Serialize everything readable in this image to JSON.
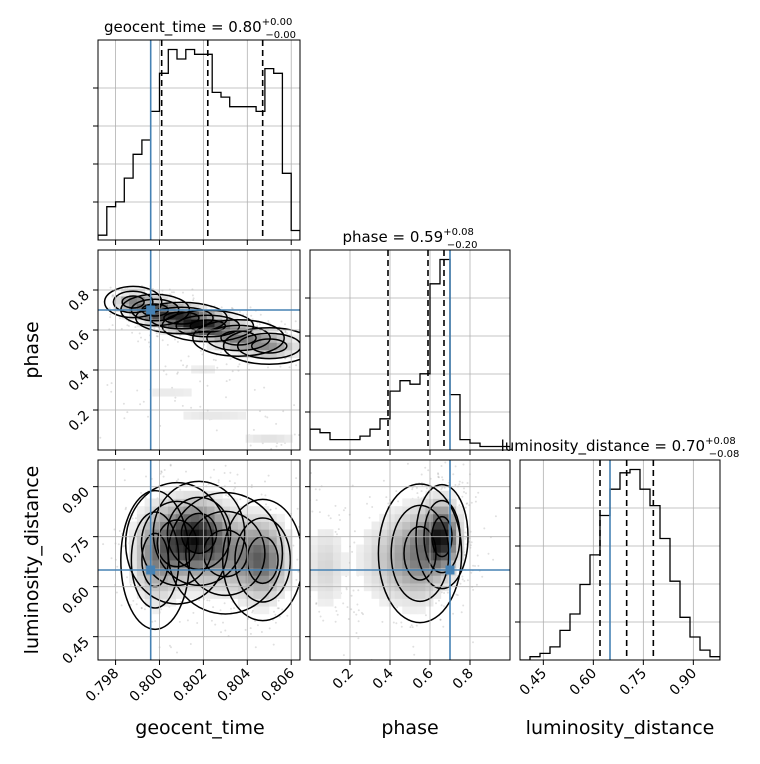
{
  "chart_data": {
    "type": "corner",
    "parameters": [
      {
        "name": "geocent_time",
        "label": "geocent_time",
        "title_value": "0.80",
        "title_plus": "+0.00",
        "title_minus": "−0.00",
        "range": [
          0.7972,
          0.8064
        ],
        "ticks": [
          0.798,
          0.8,
          0.802,
          0.804,
          0.806
        ],
        "tick_labels": [
          "0.798",
          "0.800",
          "0.802",
          "0.804",
          "0.806"
        ],
        "injection": 0.7996,
        "quantiles": [
          0.8001,
          0.8022,
          0.8047
        ],
        "hist_edges": [
          0.7972,
          0.7976,
          0.798,
          0.7984,
          0.7988,
          0.7992,
          0.7996,
          0.8,
          0.8004,
          0.8008,
          0.8012,
          0.8016,
          0.802,
          0.8024,
          0.8028,
          0.8032,
          0.8036,
          0.804,
          0.8044,
          0.8048,
          0.8052,
          0.8056,
          0.806,
          0.8064
        ],
        "hist_values": [
          1,
          7,
          8,
          13,
          18,
          21,
          27,
          35,
          40,
          38,
          40,
          39,
          39,
          31,
          30,
          28,
          28,
          28,
          27,
          36,
          35,
          14,
          2
        ]
      },
      {
        "name": "phase",
        "label": "phase",
        "title_value": "0.59",
        "title_plus": "+0.08",
        "title_minus": "−0.20",
        "range": [
          0.0,
          1.0
        ],
        "ticks": [
          0.2,
          0.4,
          0.6,
          0.8
        ],
        "tick_labels": [
          "0.2",
          "0.4",
          "0.6",
          "0.8"
        ],
        "injection": 0.7,
        "quantiles": [
          0.39,
          0.59,
          0.67
        ],
        "hist_edges": [
          0.0,
          0.05,
          0.1,
          0.15,
          0.2,
          0.25,
          0.3,
          0.35,
          0.4,
          0.45,
          0.5,
          0.55,
          0.6,
          0.65,
          0.7,
          0.75,
          0.8,
          0.85,
          0.9,
          0.95,
          1.0
        ],
        "hist_values": [
          6,
          5,
          3,
          3,
          3,
          4,
          6,
          9,
          17,
          20,
          19,
          22,
          48,
          55,
          16,
          3,
          2,
          1,
          1,
          1
        ]
      },
      {
        "name": "luminosity_distance",
        "label": "luminosity_distance",
        "title_value": "0.70",
        "title_plus": "+0.08",
        "title_minus": "−0.08",
        "range": [
          0.38,
          0.98
        ],
        "ticks": [
          0.45,
          0.6,
          0.75,
          0.9
        ],
        "tick_labels": [
          "0.45",
          "0.60",
          "0.75",
          "0.90"
        ],
        "injection": 0.65,
        "quantiles": [
          0.62,
          0.7,
          0.78
        ],
        "hist_edges": [
          0.38,
          0.41,
          0.44,
          0.47,
          0.5,
          0.53,
          0.56,
          0.59,
          0.62,
          0.65,
          0.68,
          0.71,
          0.74,
          0.77,
          0.8,
          0.83,
          0.86,
          0.89,
          0.92,
          0.95,
          0.98
        ],
        "hist_values": [
          0,
          1,
          2,
          4,
          9,
          14,
          23,
          32,
          44,
          52,
          57,
          58,
          52,
          47,
          37,
          24,
          13,
          7,
          3,
          1
        ]
      }
    ],
    "density_blobs": {
      "phase_vs_geocent_time": [
        {
          "x": 0.7988,
          "y": 0.74,
          "sx": 0.0005,
          "sy": 0.03,
          "w": 0.6
        },
        {
          "x": 0.7998,
          "y": 0.7,
          "sx": 0.0006,
          "sy": 0.03,
          "w": 0.8
        },
        {
          "x": 0.801,
          "y": 0.66,
          "sx": 0.0008,
          "sy": 0.03,
          "w": 1.0
        },
        {
          "x": 0.8022,
          "y": 0.62,
          "sx": 0.0008,
          "sy": 0.03,
          "w": 1.0
        },
        {
          "x": 0.8036,
          "y": 0.56,
          "sx": 0.0008,
          "sy": 0.035,
          "w": 0.6
        },
        {
          "x": 0.805,
          "y": 0.52,
          "sx": 0.0008,
          "sy": 0.035,
          "w": 0.5
        },
        {
          "x": 0.802,
          "y": 0.42,
          "sx": 0.001,
          "sy": 0.02,
          "w": 0.12
        },
        {
          "x": 0.8005,
          "y": 0.3,
          "sx": 0.0012,
          "sy": 0.02,
          "w": 0.12
        },
        {
          "x": 0.8025,
          "y": 0.18,
          "sx": 0.0015,
          "sy": 0.03,
          "w": 0.12
        },
        {
          "x": 0.805,
          "y": 0.05,
          "sx": 0.001,
          "sy": 0.02,
          "w": 0.15
        }
      ],
      "luminosity_distance_vs_geocent_time": [
        {
          "x": 0.8008,
          "y": 0.73,
          "sx": 0.0009,
          "sy": 0.07,
          "w": 0.8
        },
        {
          "x": 0.8018,
          "y": 0.76,
          "sx": 0.0008,
          "sy": 0.06,
          "w": 0.9
        },
        {
          "x": 0.803,
          "y": 0.7,
          "sx": 0.001,
          "sy": 0.07,
          "w": 0.6
        },
        {
          "x": 0.8047,
          "y": 0.68,
          "sx": 0.0007,
          "sy": 0.07,
          "w": 0.9
        },
        {
          "x": 0.7998,
          "y": 0.68,
          "sx": 0.0006,
          "sy": 0.08,
          "w": 0.5
        }
      ],
      "luminosity_distance_vs_phase": [
        {
          "x": 0.66,
          "y": 0.75,
          "sx": 0.05,
          "sy": 0.06,
          "w": 1.0
        },
        {
          "x": 0.55,
          "y": 0.7,
          "sx": 0.08,
          "sy": 0.08,
          "w": 0.55
        },
        {
          "x": 0.4,
          "y": 0.68,
          "sx": 0.1,
          "sy": 0.08,
          "w": 0.25
        },
        {
          "x": 0.08,
          "y": 0.66,
          "sx": 0.06,
          "sy": 0.08,
          "w": 0.2
        }
      ]
    },
    "colors": {
      "injection": "#4682b4",
      "hist": "#000000",
      "grid": "#b0b0b0",
      "density_max": "#000000"
    }
  }
}
